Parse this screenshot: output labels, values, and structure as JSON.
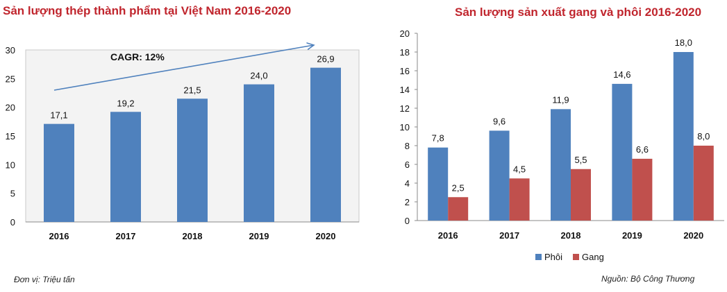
{
  "charts": {
    "left": {
      "title": "Sản lượng thép thành phẩm  tại Việt Nam 2016-2020"
    },
    "right": {
      "title": "Sản lượng sản xuất gang và phôi 2016-2020"
    }
  },
  "footer": {
    "unit": "Đơn vị: Triệu tấn",
    "source": "Nguồn: Bộ Công Thương"
  },
  "chart_data": [
    {
      "type": "bar",
      "title": "Sản lượng thép thành phẩm  tại Việt Nam 2016-2020",
      "categories": [
        "2016",
        "2017",
        "2018",
        "2019",
        "2020"
      ],
      "values": [
        17.1,
        19.2,
        21.5,
        24.0,
        26.9
      ],
      "value_labels": [
        "17,1",
        "19,2",
        "21,5",
        "24,0",
        "26,9"
      ],
      "ylim": [
        0,
        30
      ],
      "yticks": [
        "0",
        "5",
        "10",
        "15",
        "20",
        "25",
        "30"
      ],
      "annotation": "CAGR: 12%",
      "bar_color": "#4f81bd",
      "grid": false
    },
    {
      "type": "bar",
      "title": "Sản lượng sản xuất gang và phôi 2016-2020",
      "categories": [
        "2016",
        "2017",
        "2018",
        "2019",
        "2020"
      ],
      "series": [
        {
          "name": "Phôi",
          "values": [
            7.8,
            9.6,
            11.9,
            14.6,
            18.0
          ],
          "labels": [
            "7,8",
            "9,6",
            "11,9",
            "14,6",
            "18,0"
          ],
          "color": "#4f81bd"
        },
        {
          "name": "Gang",
          "values": [
            2.5,
            4.5,
            5.5,
            6.6,
            8.0
          ],
          "labels": [
            "2,5",
            "4,5",
            "5,5",
            "6,6",
            "8,0"
          ],
          "color": "#c0504d"
        }
      ],
      "ylim": [
        0,
        20
      ],
      "yticks": [
        "0",
        "2",
        "4",
        "6",
        "8",
        "10",
        "12",
        "14",
        "16",
        "18",
        "20"
      ],
      "legend": "bottom",
      "grid": false
    }
  ]
}
